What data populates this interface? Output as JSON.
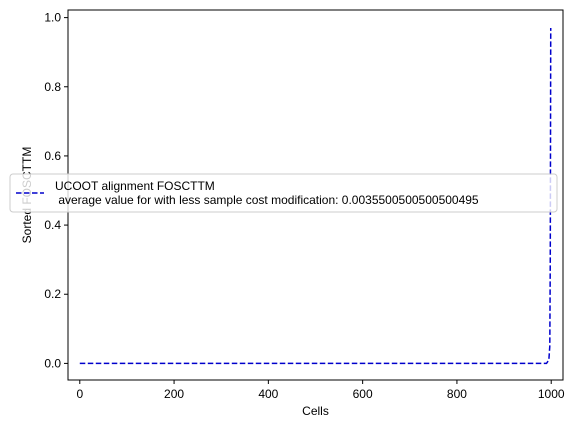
{
  "chart_data": {
    "type": "line",
    "xlabel": "Cells",
    "ylabel": "Sorted FOSCTTM",
    "xlim": [
      -25,
      1025
    ],
    "ylim": [
      -0.048,
      1.022
    ],
    "xticks": [
      0,
      200,
      400,
      600,
      800,
      1000
    ],
    "yticks": [
      0.0,
      0.2,
      0.4,
      0.6,
      0.8,
      1.0
    ],
    "xtick_labels": [
      "0",
      "200",
      "400",
      "600",
      "800",
      "1000"
    ],
    "ytick_labels": [
      "0.0",
      "0.2",
      "0.4",
      "0.6",
      "0.8",
      "1.0"
    ],
    "grid": false,
    "legend_position": "center-left",
    "series": [
      {
        "name": "UCOOT alignment FOSCTTM\n average value for with less sample cost modification: 0.0035500500500500495",
        "name_line1": "UCOOT alignment FOSCTTM",
        "name_line2": " average value for with less sample cost modification: 0.0035500500500500495",
        "color": "#0000cc",
        "style": "dashed",
        "x": [
          0,
          100,
          200,
          300,
          400,
          500,
          600,
          700,
          800,
          900,
          990,
          995,
          997,
          998,
          999
        ],
        "y": [
          0,
          0,
          0,
          0,
          0,
          0,
          0,
          0,
          0,
          0,
          0,
          0.01,
          0.05,
          0.3,
          0.97
        ]
      }
    ]
  }
}
